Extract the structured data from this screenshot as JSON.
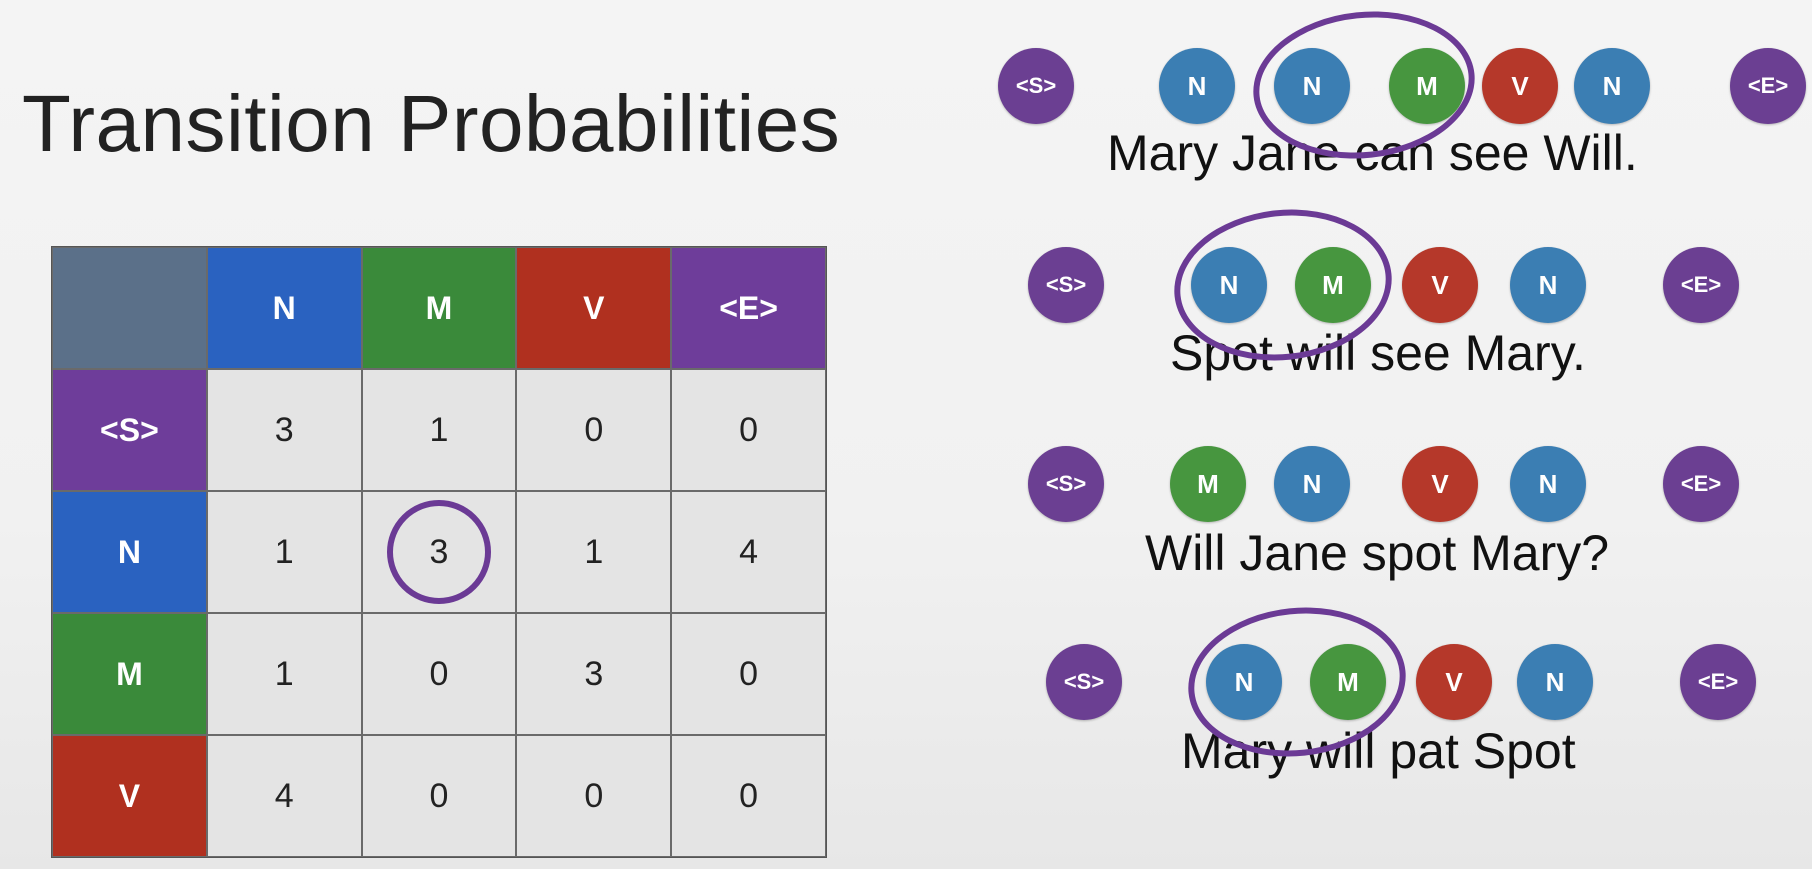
{
  "title": "Transition Probabilities",
  "colors": {
    "N": "#2a62c0",
    "M": "#3a8a3a",
    "V": "#b0301f",
    "E": "#6e3d9a",
    "S": "#6e3d9a",
    "corner": "#5b7089",
    "node_N": "#3b7eb3",
    "node_M": "#47963f",
    "node_V": "#b5382a",
    "node_S": "#6b3f92"
  },
  "table": {
    "columns": [
      "N",
      "M",
      "V",
      "<E>"
    ],
    "rows": [
      {
        "label": "<S>",
        "values": [
          "3",
          "1",
          "0",
          "0"
        ]
      },
      {
        "label": "N",
        "values": [
          "1",
          "3",
          "1",
          "4"
        ]
      },
      {
        "label": "M",
        "values": [
          "1",
          "0",
          "3",
          "0"
        ]
      },
      {
        "label": "V",
        "values": [
          "4",
          "0",
          "0",
          "0"
        ]
      }
    ]
  },
  "sentences": [
    {
      "text": "Mary Jane can see Will.",
      "start": "<S>",
      "end": "<E>",
      "tags": [
        "N",
        "N",
        "M",
        "V",
        "N"
      ]
    },
    {
      "text": "Spot will see Mary.",
      "start": "<S>",
      "end": "<E>",
      "tags": [
        "N",
        "M",
        "V",
        "N"
      ]
    },
    {
      "text": "Will Jane spot Mary?",
      "start": "<S>",
      "end": "<E>",
      "tags": [
        "M",
        "N",
        "V",
        "N"
      ]
    },
    {
      "text": "Mary will pat Spot",
      "start": "<S>",
      "end": "<E>",
      "tags": [
        "N",
        "M",
        "V",
        "N"
      ]
    }
  ]
}
